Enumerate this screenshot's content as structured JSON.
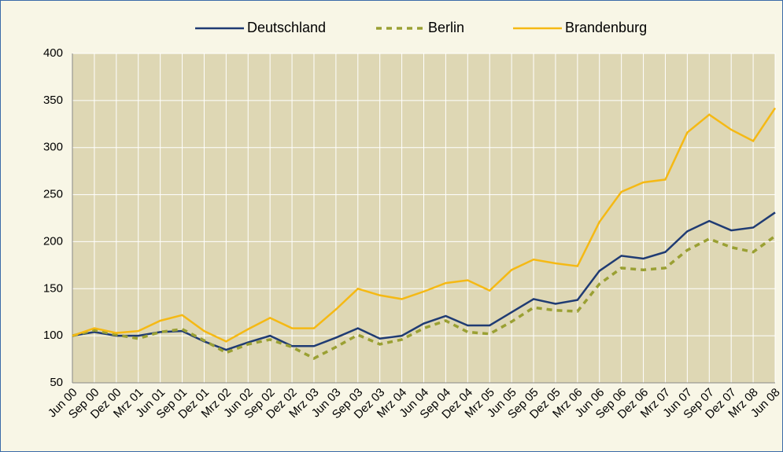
{
  "chart_data": {
    "type": "line",
    "categories": [
      "Jun 00",
      "Sep 00",
      "Dez 00",
      "Mrz 01",
      "Jun 01",
      "Sep 01",
      "Dez 01",
      "Mrz 02",
      "Jun 02",
      "Sep 02",
      "Dez 02",
      "Mrz 03",
      "Jun 03",
      "Sep 03",
      "Dez 03",
      "Mrz 04",
      "Jun 04",
      "Sep 04",
      "Dez 04",
      "Mrz 05",
      "Jun 05",
      "Sep 05",
      "Dez 05",
      "Mrz 06",
      "Jun 06",
      "Sep 06",
      "Dez 06",
      "Mrz 07",
      "Jun 07",
      "Sep 07",
      "Dez 07",
      "Mrz 08",
      "Jun 08"
    ],
    "series": [
      {
        "name": "Deutschland",
        "color": "#1f3b73",
        "dash": false,
        "values": [
          100,
          104,
          100,
          100,
          104,
          105,
          94,
          85,
          93,
          100,
          89,
          89,
          98,
          108,
          97,
          100,
          113,
          121,
          111,
          111,
          125,
          139,
          134,
          138,
          169,
          185,
          182,
          189,
          211,
          222,
          212,
          215,
          231
        ]
      },
      {
        "name": "Berlin",
        "color": "#9aa033",
        "dash": true,
        "values": [
          100,
          106,
          101,
          97,
          104,
          107,
          95,
          82,
          91,
          96,
          88,
          76,
          88,
          101,
          91,
          96,
          108,
          116,
          104,
          102,
          115,
          130,
          127,
          126,
          155,
          172,
          170,
          172,
          191,
          203,
          194,
          189,
          206
        ]
      },
      {
        "name": "Brandenburg",
        "color": "#f5b914",
        "dash": false,
        "values": [
          100,
          108,
          103,
          105,
          116,
          122,
          105,
          94,
          107,
          119,
          108,
          108,
          128,
          150,
          143,
          139,
          147,
          156,
          159,
          148,
          170,
          181,
          177,
          174,
          221,
          253,
          263,
          266,
          316,
          335,
          319,
          307,
          342
        ]
      }
    ],
    "ylim": [
      50,
      400
    ],
    "yticks": [
      50,
      100,
      150,
      200,
      250,
      300,
      350,
      400
    ],
    "grid": true,
    "legend": "top"
  }
}
